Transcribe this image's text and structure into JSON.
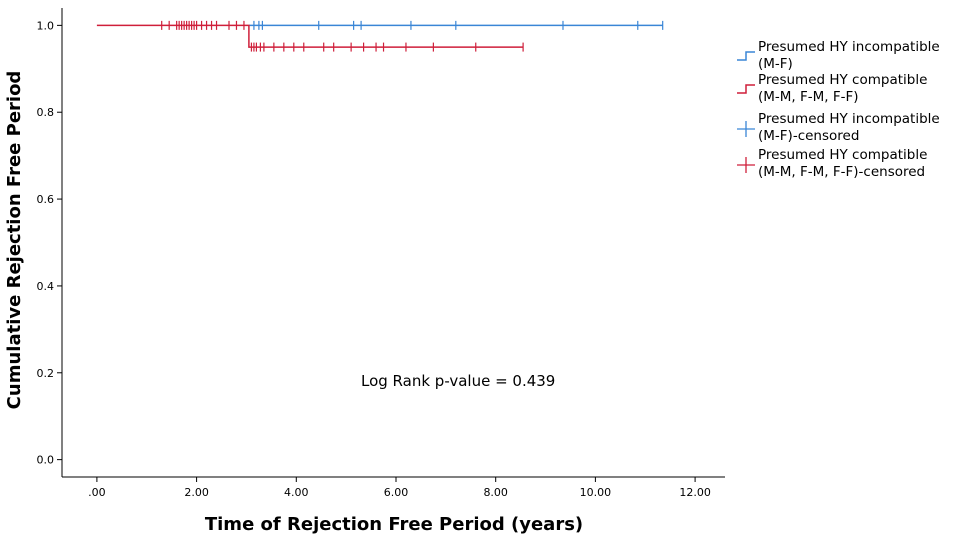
{
  "chart_data": {
    "type": "line",
    "subtype": "kaplan-meier",
    "xlabel": "Time of Rejection Free Period (years)",
    "ylabel": "Cumulative Rejection Free Period",
    "xlim": [
      -0.7,
      12.6
    ],
    "ylim": [
      -0.04,
      1.04
    ],
    "x_ticks": [
      ".00",
      "2.00",
      "4.00",
      "6.00",
      "8.00",
      "10.00",
      "12.00"
    ],
    "x_tick_values": [
      0,
      2,
      4,
      6,
      8,
      10,
      12
    ],
    "y_ticks": [
      "0.0",
      "0.2",
      "0.4",
      "0.6",
      "0.8",
      "1.0"
    ],
    "y_tick_values": [
      0,
      0.2,
      0.4,
      0.6,
      0.8,
      1.0
    ],
    "grid": false,
    "legend_position": "right",
    "annotation": "Log Rank p-value = 0.439",
    "series": [
      {
        "name": "Presumed HY incompatible (M-F)",
        "legend_lines": [
          "Presumed HY incompatible",
          "(M-F)"
        ],
        "censored_legend_lines": [
          "Presumed HY incompatible",
          "(M-F)-censored"
        ],
        "color": "#3a86d6",
        "steps": [
          [
            3.05,
            1.0
          ],
          [
            11.35,
            1.0
          ]
        ],
        "censored": [
          [
            3.15,
            1.0
          ],
          [
            3.25,
            1.0
          ],
          [
            3.32,
            1.0
          ],
          [
            4.45,
            1.0
          ],
          [
            5.15,
            1.0
          ],
          [
            5.3,
            1.0
          ],
          [
            6.3,
            1.0
          ],
          [
            7.2,
            1.0
          ],
          [
            9.35,
            1.0
          ],
          [
            10.85,
            1.0
          ],
          [
            11.35,
            1.0
          ]
        ]
      },
      {
        "name": "Presumed HY compatible (M-M, F-M, F-F)",
        "legend_lines": [
          "Presumed HY compatible",
          "(M-M, F-M, F-F)"
        ],
        "censored_legend_lines": [
          "Presumed HY compatible",
          "(M-M, F-M, F-F)-censored"
        ],
        "color": "#cf1f3a",
        "steps": [
          [
            0.0,
            1.0
          ],
          [
            3.05,
            1.0
          ],
          [
            3.05,
            0.95
          ],
          [
            8.55,
            0.95
          ]
        ],
        "censored": [
          [
            1.3,
            1.0
          ],
          [
            1.45,
            1.0
          ],
          [
            1.6,
            1.0
          ],
          [
            1.65,
            1.0
          ],
          [
            1.7,
            1.0
          ],
          [
            1.75,
            1.0
          ],
          [
            1.8,
            1.0
          ],
          [
            1.85,
            1.0
          ],
          [
            1.9,
            1.0
          ],
          [
            1.95,
            1.0
          ],
          [
            2.0,
            1.0
          ],
          [
            2.1,
            1.0
          ],
          [
            2.2,
            1.0
          ],
          [
            2.3,
            1.0
          ],
          [
            2.4,
            1.0
          ],
          [
            2.65,
            1.0
          ],
          [
            2.8,
            1.0
          ],
          [
            2.95,
            1.0
          ],
          [
            3.1,
            0.95
          ],
          [
            3.15,
            0.95
          ],
          [
            3.2,
            0.95
          ],
          [
            3.28,
            0.95
          ],
          [
            3.35,
            0.95
          ],
          [
            3.55,
            0.95
          ],
          [
            3.75,
            0.95
          ],
          [
            3.95,
            0.95
          ],
          [
            4.15,
            0.95
          ],
          [
            4.55,
            0.95
          ],
          [
            4.75,
            0.95
          ],
          [
            5.1,
            0.95
          ],
          [
            5.35,
            0.95
          ],
          [
            5.6,
            0.95
          ],
          [
            5.75,
            0.95
          ],
          [
            6.2,
            0.95
          ],
          [
            6.75,
            0.95
          ],
          [
            7.6,
            0.95
          ],
          [
            8.55,
            0.95
          ]
        ]
      }
    ]
  }
}
